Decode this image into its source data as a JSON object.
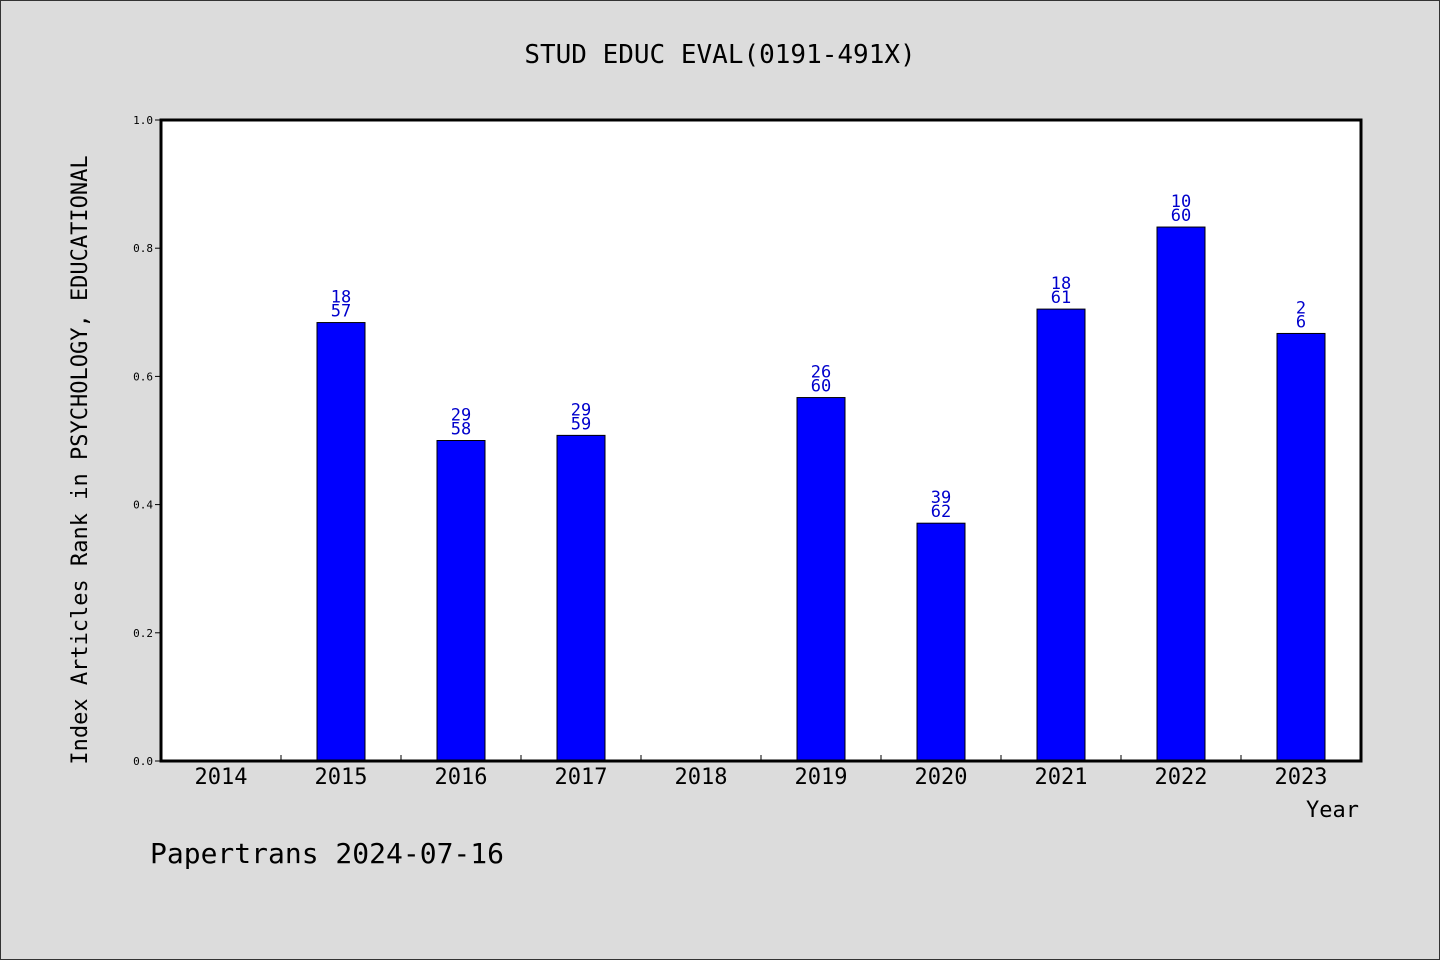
{
  "chart_data": {
    "type": "bar",
    "title": "STUD EDUC EVAL(0191-491X)",
    "xlabel": "Year",
    "ylabel": "Index Articles Rank in PSYCHOLOGY, EDUCATIONAL",
    "categories": [
      "2014",
      "2015",
      "2016",
      "2017",
      "2018",
      "2019",
      "2020",
      "2021",
      "2022",
      "2023"
    ],
    "values": [
      null,
      0.684,
      0.5,
      0.508,
      null,
      0.567,
      0.371,
      0.705,
      0.833,
      0.667
    ],
    "bar_labels": [
      null,
      [
        "18",
        "57"
      ],
      [
        "29",
        "58"
      ],
      [
        "29",
        "59"
      ],
      null,
      [
        "26",
        "60"
      ],
      [
        "39",
        "62"
      ],
      [
        "18",
        "61"
      ],
      [
        "10",
        "60"
      ],
      [
        "2",
        "6"
      ]
    ],
    "ylim": [
      0,
      1.0
    ],
    "yticks": [
      "0.0",
      "0.2",
      "0.4",
      "0.6",
      "0.8",
      "1.0"
    ],
    "bar_color": "#0000ff",
    "label_color": "#0000cc",
    "grid": false,
    "legend": "none"
  },
  "footer": {
    "text": "Papertrans 2024-07-16"
  }
}
